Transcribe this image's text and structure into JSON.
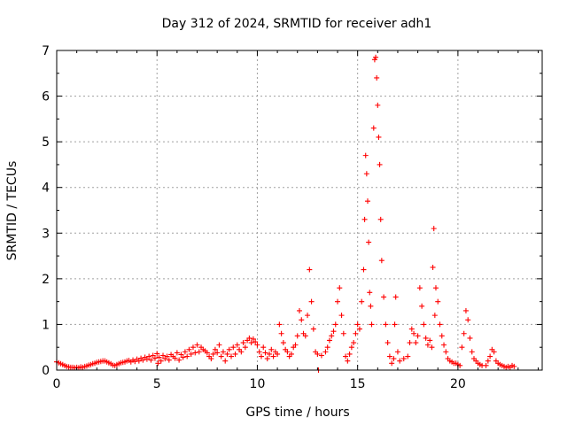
{
  "chart_data": {
    "type": "scatter",
    "title": "Day 312 of 2024, SRMTID for receiver adh1",
    "xlabel": "GPS time / hours",
    "ylabel": "SRMTID / TECUs",
    "xlim": [
      0,
      24.2
    ],
    "ylim": [
      0,
      7
    ],
    "xticks": [
      0,
      5,
      10,
      15,
      20
    ],
    "yticks": [
      0,
      1,
      2,
      3,
      4,
      5,
      6,
      7
    ],
    "grid": true,
    "marker": "+",
    "color": "#ff0000",
    "series": [
      {
        "name": "adh1",
        "points": [
          [
            0.0,
            0.18
          ],
          [
            0.1,
            0.16
          ],
          [
            0.2,
            0.14
          ],
          [
            0.3,
            0.12
          ],
          [
            0.4,
            0.1
          ],
          [
            0.5,
            0.08
          ],
          [
            0.6,
            0.07
          ],
          [
            0.7,
            0.06
          ],
          [
            0.8,
            0.06
          ],
          [
            0.9,
            0.05
          ],
          [
            1.0,
            0.06
          ],
          [
            1.1,
            0.05
          ],
          [
            1.2,
            0.07
          ],
          [
            1.3,
            0.06
          ],
          [
            1.4,
            0.08
          ],
          [
            1.5,
            0.09
          ],
          [
            1.6,
            0.11
          ],
          [
            1.7,
            0.12
          ],
          [
            1.8,
            0.14
          ],
          [
            1.9,
            0.15
          ],
          [
            2.0,
            0.17
          ],
          [
            2.1,
            0.18
          ],
          [
            2.2,
            0.19
          ],
          [
            2.3,
            0.2
          ],
          [
            2.4,
            0.2
          ],
          [
            2.5,
            0.18
          ],
          [
            2.6,
            0.16
          ],
          [
            2.7,
            0.14
          ],
          [
            2.8,
            0.11
          ],
          [
            2.9,
            0.1
          ],
          [
            3.0,
            0.12
          ],
          [
            3.1,
            0.14
          ],
          [
            3.2,
            0.16
          ],
          [
            3.3,
            0.17
          ],
          [
            3.4,
            0.18
          ],
          [
            3.5,
            0.2
          ],
          [
            3.6,
            0.21
          ],
          [
            3.7,
            0.18
          ],
          [
            3.8,
            0.22
          ],
          [
            3.9,
            0.19
          ],
          [
            4.0,
            0.24
          ],
          [
            4.1,
            0.2
          ],
          [
            4.2,
            0.26
          ],
          [
            4.3,
            0.22
          ],
          [
            4.4,
            0.28
          ],
          [
            4.5,
            0.24
          ],
          [
            4.6,
            0.3
          ],
          [
            4.7,
            0.22
          ],
          [
            4.8,
            0.32
          ],
          [
            4.9,
            0.26
          ],
          [
            5.0,
            0.36
          ],
          [
            5.05,
            0.15
          ],
          [
            5.1,
            0.28
          ],
          [
            5.2,
            0.2
          ],
          [
            5.3,
            0.32
          ],
          [
            5.4,
            0.25
          ],
          [
            5.5,
            0.3
          ],
          [
            5.6,
            0.22
          ],
          [
            5.7,
            0.34
          ],
          [
            5.8,
            0.3
          ],
          [
            5.9,
            0.26
          ],
          [
            6.0,
            0.38
          ],
          [
            6.1,
            0.22
          ],
          [
            6.2,
            0.34
          ],
          [
            6.3,
            0.28
          ],
          [
            6.4,
            0.4
          ],
          [
            6.5,
            0.3
          ],
          [
            6.6,
            0.45
          ],
          [
            6.7,
            0.35
          ],
          [
            6.8,
            0.5
          ],
          [
            6.9,
            0.38
          ],
          [
            7.0,
            0.55
          ],
          [
            7.1,
            0.4
          ],
          [
            7.2,
            0.5
          ],
          [
            7.3,
            0.45
          ],
          [
            7.4,
            0.42
          ],
          [
            7.5,
            0.38
          ],
          [
            7.6,
            0.3
          ],
          [
            7.7,
            0.25
          ],
          [
            7.8,
            0.35
          ],
          [
            7.9,
            0.45
          ],
          [
            8.0,
            0.38
          ],
          [
            8.1,
            0.55
          ],
          [
            8.2,
            0.3
          ],
          [
            8.3,
            0.4
          ],
          [
            8.4,
            0.2
          ],
          [
            8.5,
            0.35
          ],
          [
            8.6,
            0.45
          ],
          [
            8.7,
            0.3
          ],
          [
            8.8,
            0.5
          ],
          [
            8.9,
            0.35
          ],
          [
            9.0,
            0.55
          ],
          [
            9.1,
            0.45
          ],
          [
            9.2,
            0.4
          ],
          [
            9.3,
            0.6
          ],
          [
            9.4,
            0.5
          ],
          [
            9.5,
            0.65
          ],
          [
            9.6,
            0.7
          ],
          [
            9.7,
            0.6
          ],
          [
            9.8,
            0.68
          ],
          [
            9.9,
            0.62
          ],
          [
            10.0,
            0.55
          ],
          [
            10.1,
            0.4
          ],
          [
            10.2,
            0.3
          ],
          [
            10.3,
            0.5
          ],
          [
            10.4,
            0.38
          ],
          [
            10.5,
            0.25
          ],
          [
            10.6,
            0.35
          ],
          [
            10.7,
            0.45
          ],
          [
            10.8,
            0.3
          ],
          [
            10.9,
            0.4
          ],
          [
            11.0,
            0.35
          ],
          [
            11.1,
            1.0
          ],
          [
            11.2,
            0.8
          ],
          [
            11.3,
            0.6
          ],
          [
            11.4,
            0.45
          ],
          [
            11.5,
            0.4
          ],
          [
            11.6,
            0.3
          ],
          [
            11.7,
            0.35
          ],
          [
            11.8,
            0.5
          ],
          [
            11.9,
            0.55
          ],
          [
            12.0,
            0.75
          ],
          [
            12.1,
            1.3
          ],
          [
            12.2,
            1.1
          ],
          [
            12.3,
            0.8
          ],
          [
            12.4,
            0.75
          ],
          [
            12.5,
            1.2
          ],
          [
            12.6,
            2.2
          ],
          [
            12.7,
            1.5
          ],
          [
            12.8,
            0.9
          ],
          [
            12.9,
            0.4
          ],
          [
            13.0,
            0.35
          ],
          [
            13.05,
            0.0
          ],
          [
            13.2,
            0.32
          ],
          [
            13.4,
            0.4
          ],
          [
            13.5,
            0.5
          ],
          [
            13.6,
            0.65
          ],
          [
            13.7,
            0.75
          ],
          [
            13.8,
            0.85
          ],
          [
            13.9,
            1.0
          ],
          [
            14.0,
            1.5
          ],
          [
            14.1,
            1.8
          ],
          [
            14.2,
            1.2
          ],
          [
            14.3,
            0.8
          ],
          [
            14.4,
            0.3
          ],
          [
            14.5,
            0.2
          ],
          [
            14.6,
            0.35
          ],
          [
            14.7,
            0.5
          ],
          [
            14.8,
            0.6
          ],
          [
            14.9,
            0.8
          ],
          [
            15.0,
            1.0
          ],
          [
            15.1,
            0.9
          ],
          [
            15.2,
            1.5
          ],
          [
            15.3,
            2.2
          ],
          [
            15.35,
            3.3
          ],
          [
            15.4,
            4.7
          ],
          [
            15.45,
            4.3
          ],
          [
            15.5,
            3.7
          ],
          [
            15.55,
            2.8
          ],
          [
            15.6,
            1.7
          ],
          [
            15.65,
            1.4
          ],
          [
            15.7,
            1.0
          ],
          [
            15.8,
            5.3
          ],
          [
            15.85,
            6.8
          ],
          [
            15.9,
            6.85
          ],
          [
            15.95,
            6.4
          ],
          [
            16.0,
            5.8
          ],
          [
            16.05,
            5.1
          ],
          [
            16.1,
            4.5
          ],
          [
            16.15,
            3.3
          ],
          [
            16.2,
            2.4
          ],
          [
            16.3,
            1.6
          ],
          [
            16.4,
            1.0
          ],
          [
            16.5,
            0.6
          ],
          [
            16.6,
            0.3
          ],
          [
            16.7,
            0.15
          ],
          [
            16.8,
            0.25
          ],
          [
            16.85,
            1.0
          ],
          [
            16.9,
            1.6
          ],
          [
            17.0,
            0.4
          ],
          [
            17.1,
            0.2
          ],
          [
            17.3,
            0.25
          ],
          [
            17.5,
            0.3
          ],
          [
            17.6,
            0.6
          ],
          [
            17.7,
            0.9
          ],
          [
            17.8,
            0.8
          ],
          [
            17.9,
            0.6
          ],
          [
            18.0,
            0.75
          ],
          [
            18.1,
            1.8
          ],
          [
            18.2,
            1.4
          ],
          [
            18.3,
            1.0
          ],
          [
            18.4,
            0.7
          ],
          [
            18.5,
            0.55
          ],
          [
            18.6,
            0.65
          ],
          [
            18.7,
            0.5
          ],
          [
            18.75,
            2.25
          ],
          [
            18.8,
            3.1
          ],
          [
            18.85,
            1.2
          ],
          [
            18.9,
            1.8
          ],
          [
            19.0,
            1.5
          ],
          [
            19.1,
            1.0
          ],
          [
            19.2,
            0.75
          ],
          [
            19.3,
            0.55
          ],
          [
            19.4,
            0.4
          ],
          [
            19.5,
            0.25
          ],
          [
            19.6,
            0.2
          ],
          [
            19.7,
            0.18
          ],
          [
            19.8,
            0.15
          ],
          [
            19.9,
            0.15
          ],
          [
            20.0,
            0.12
          ],
          [
            20.1,
            0.1
          ],
          [
            20.2,
            0.5
          ],
          [
            20.3,
            0.8
          ],
          [
            20.4,
            1.3
          ],
          [
            20.5,
            1.1
          ],
          [
            20.6,
            0.7
          ],
          [
            20.7,
            0.4
          ],
          [
            20.8,
            0.25
          ],
          [
            20.9,
            0.2
          ],
          [
            21.0,
            0.15
          ],
          [
            21.1,
            0.12
          ],
          [
            21.2,
            0.1
          ],
          [
            21.4,
            0.1
          ],
          [
            21.5,
            0.2
          ],
          [
            21.6,
            0.3
          ],
          [
            21.7,
            0.45
          ],
          [
            21.8,
            0.4
          ],
          [
            21.9,
            0.2
          ],
          [
            22.0,
            0.15
          ],
          [
            22.1,
            0.12
          ],
          [
            22.2,
            0.1
          ],
          [
            22.3,
            0.08
          ],
          [
            22.4,
            0.06
          ],
          [
            22.5,
            0.08
          ],
          [
            22.6,
            0.06
          ],
          [
            22.7,
            0.1
          ],
          [
            22.8,
            0.08
          ]
        ]
      }
    ]
  }
}
